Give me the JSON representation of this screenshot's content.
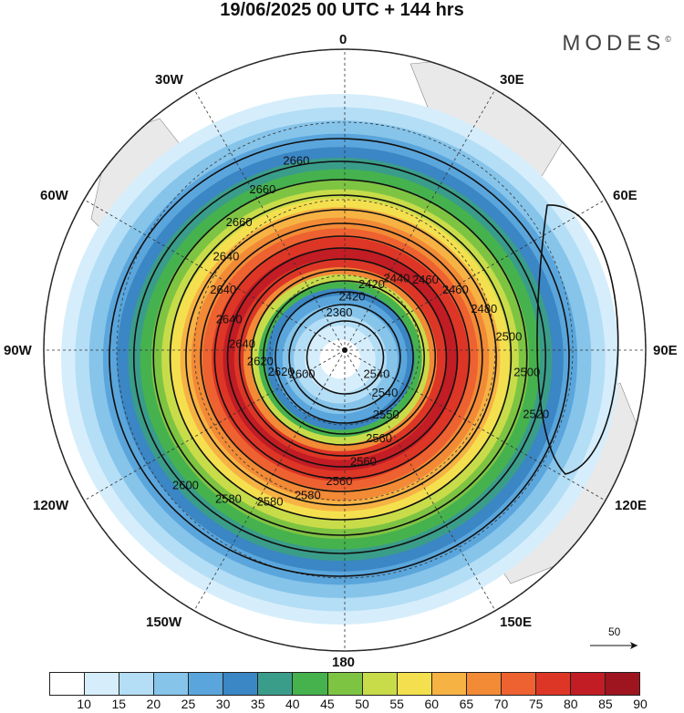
{
  "title": "19/06/2025  00 UTC  + 144 hrs",
  "brand": "MODES",
  "brand_mark": "©",
  "longitude_labels": {
    "top": "0",
    "bottom": "180",
    "left": "90W",
    "right": "90E",
    "upper_left": "30W",
    "upper_right": "30E",
    "mid_upper_left": "60W",
    "mid_upper_right": "60E",
    "mid_lower_left": "120W",
    "mid_lower_right": "120E",
    "lower_left": "150W",
    "lower_right": "150E"
  },
  "contour_labels": [
    "2360",
    "2420",
    "2420",
    "2440",
    "2460",
    "2460",
    "2480",
    "2500",
    "2500",
    "2520",
    "2540",
    "2540",
    "2550",
    "2560",
    "2560",
    "2560",
    "2580",
    "2580",
    "2580",
    "2600",
    "2600",
    "2620",
    "2620",
    "2640",
    "2640",
    "2640",
    "2640",
    "2660",
    "2660",
    "2660"
  ],
  "colorbar": {
    "colors": [
      "#ffffff",
      "#d6eefb",
      "#b4def6",
      "#86c4ea",
      "#5aa6dc",
      "#3b86c4",
      "#3a9d8a",
      "#46b24e",
      "#7ec443",
      "#c8dc4a",
      "#f4e04e",
      "#f7b244",
      "#f28a36",
      "#ee6130",
      "#dd3626",
      "#c21c24",
      "#9e1520"
    ],
    "tick_labels": [
      "10",
      "15",
      "20",
      "25",
      "30",
      "35",
      "40",
      "45",
      "50",
      "55",
      "60",
      "65",
      "70",
      "75",
      "80",
      "85",
      "90"
    ]
  },
  "reference_vector": "50",
  "legend_hidden_icon": "pole-marker"
}
